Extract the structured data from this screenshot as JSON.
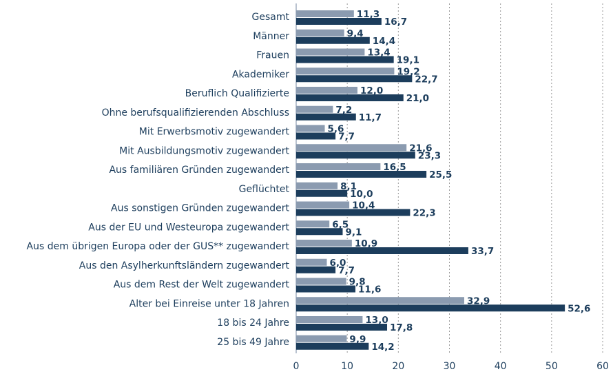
{
  "chart_data": {
    "type": "hbar",
    "categories": [
      "Gesamt",
      "Männer",
      "Frauen",
      "Akademiker",
      "Beruflich Qualifizierte",
      "Ohne berufsqualifizierenden Abschluss",
      "Mit Erwerbsmotiv zugewandert",
      "Mit Ausbildungsmotiv zugewandert",
      "Aus familiären Gründen zugewandert",
      "Geflüchtet",
      "Aus sonstigen Gründen zugewandert",
      "Aus der EU und Westeuropa zugewandert",
      "Aus dem übrigen Europa oder der GUS** zugewandert",
      "Aus den Asylherkunftsländern zugewandert",
      "Aus dem Rest der Welt zugewandert",
      "Alter bei Einreise unter 18 Jahren",
      "18 bis 24 Jahre",
      "25 bis 49 Jahre"
    ],
    "series": [
      {
        "color": "#8b9bb0",
        "values": [
          11.3,
          9.4,
          13.4,
          19.2,
          12.0,
          7.2,
          5.6,
          21.6,
          16.5,
          8.1,
          10.4,
          6.5,
          10.9,
          6.0,
          9.8,
          32.9,
          13.0,
          9.9
        ],
        "value_labels": [
          "11,3",
          "9,4",
          "13,4",
          "19,2",
          "12,0",
          "7,2",
          "5,6",
          "21,6",
          "16,5",
          "8,1",
          "10,4",
          "6,5",
          "10,9",
          "6,0",
          "9,8",
          "32,9",
          "13,0",
          "9,9"
        ]
      },
      {
        "color": "#1c3d5c",
        "values": [
          16.7,
          14.4,
          19.1,
          22.7,
          21.0,
          11.7,
          7.7,
          23.3,
          25.5,
          10.0,
          22.3,
          9.1,
          33.7,
          7.7,
          11.6,
          52.6,
          17.8,
          14.2
        ],
        "value_labels": [
          "16,7",
          "14,4",
          "19,1",
          "22,7",
          "21,0",
          "11,7",
          "7,7",
          "23,3",
          "25,5",
          "10,0",
          "22,3",
          "9,1",
          "33,7",
          "7,7",
          "11,6",
          "52,6",
          "17,8",
          "14,2"
        ]
      }
    ],
    "xlim": [
      0,
      60
    ],
    "xticks": [
      0,
      10,
      20,
      30,
      40,
      50,
      60
    ],
    "grid": true
  }
}
